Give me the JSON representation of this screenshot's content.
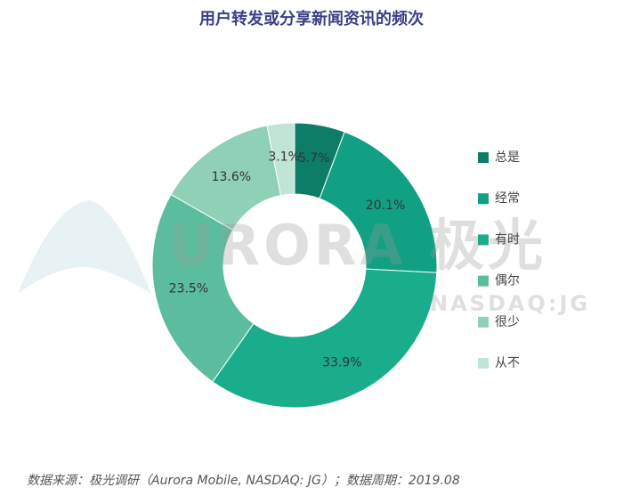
{
  "chart_data": {
    "type": "donut",
    "title": "用户转发或分享新闻资讯的频次",
    "categories": [
      "总是",
      "经常",
      "有时",
      "偶尔",
      "很少",
      "从不"
    ],
    "values": [
      5.7,
      20.1,
      33.9,
      23.5,
      13.6,
      3.1
    ],
    "value_labels": [
      "5.7%",
      "20.1%",
      "33.9%",
      "23.5%",
      "13.6%",
      "3.1%"
    ],
    "colors": [
      "#0e7d68",
      "#12a084",
      "#1aad8c",
      "#5cbd9e",
      "#8fd0b6",
      "#c0e4d5"
    ],
    "legend": "right",
    "watermark": [
      "URORA 极光",
      "NASDAQ:JG"
    ],
    "source": "数据来源：极光调研（Aurora Mobile, NASDAQ: JG）；数据周期：2019.08"
  }
}
